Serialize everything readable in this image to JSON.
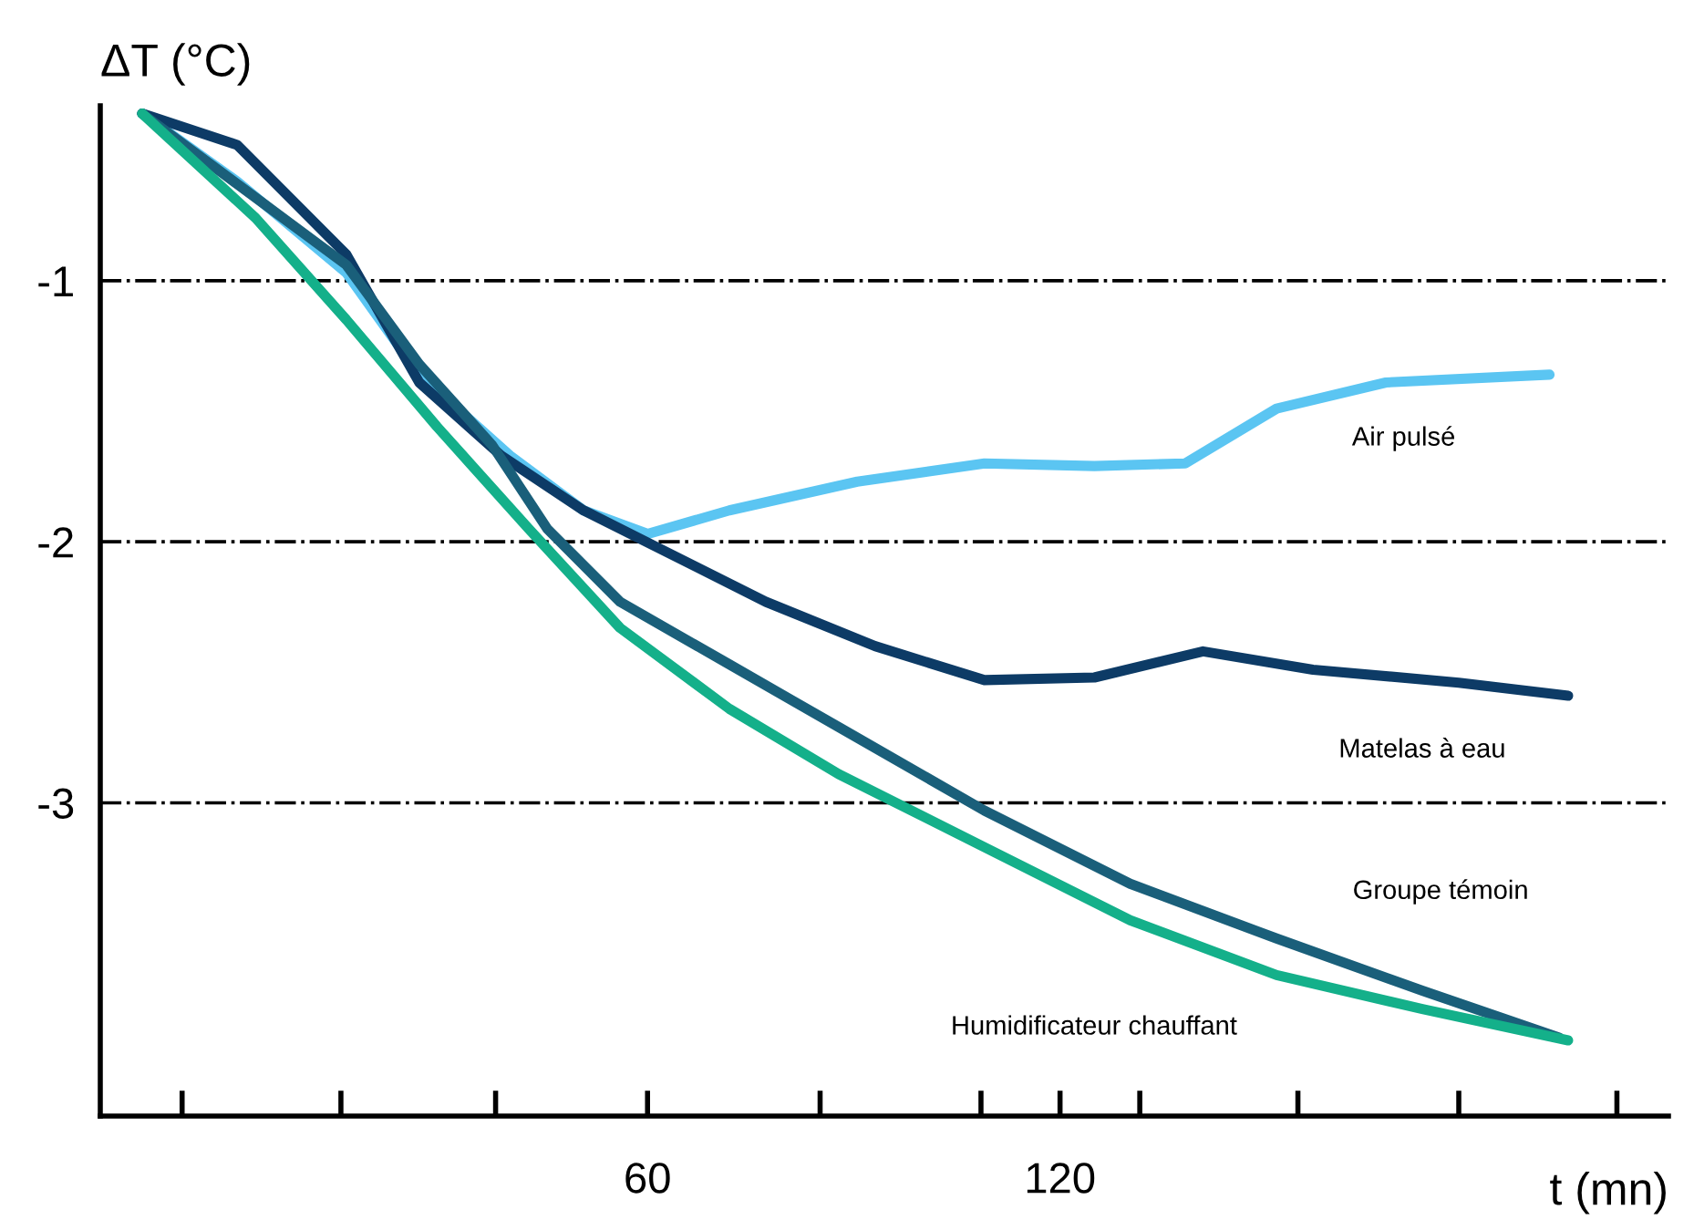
{
  "chart_data": {
    "type": "line",
    "ylabel": "ΔT (°C)",
    "xlabel": "t (mn)",
    "xlim": [
      -19.6,
      208.5
    ],
    "ylim": [
      -4.2,
      -0.33
    ],
    "xticks": [
      {
        "value": -7.7,
        "label": null
      },
      {
        "value": 15.4,
        "label": null
      },
      {
        "value": 37.9,
        "label": null
      },
      60,
      {
        "value": 85.1,
        "label": null
      },
      {
        "value": 108.5,
        "label": null
      },
      120,
      {
        "value": 131.6,
        "label": null
      },
      {
        "value": 154.6,
        "label": null
      },
      {
        "value": 178,
        "label": null
      },
      {
        "value": 201,
        "label": null
      }
    ],
    "yticks": [
      -3,
      -2,
      -1
    ],
    "grid": "y",
    "legend": false,
    "marker": "none",
    "line_style": "solid",
    "series": [
      {
        "name": "Air pulsé",
        "color": "#5bc5f2",
        "x": [
          -13.5,
          0.3,
          16.2,
          26.8,
          40,
          50.7,
          60,
          71.9,
          90.5,
          109,
          125,
          138.2,
          151.5,
          167.4,
          191.2
        ],
        "values": [
          -0.36,
          -0.62,
          -0.97,
          -1.36,
          -1.67,
          -1.88,
          -1.97,
          -1.88,
          -1.77,
          -1.7,
          -1.71,
          -1.7,
          -1.49,
          -1.39,
          -1.36
        ]
      },
      {
        "name": "Matelas à eau",
        "color": "#0d3b66",
        "x": [
          -13.5,
          0.3,
          16.2,
          26.8,
          38.7,
          50.7,
          61.3,
          77.2,
          93.1,
          109,
          125,
          140.8,
          156.8,
          178,
          193.9
        ],
        "values": [
          -0.36,
          -0.48,
          -0.9,
          -1.39,
          -1.67,
          -1.88,
          -2.02,
          -2.23,
          -2.4,
          -2.53,
          -2.52,
          -2.42,
          -2.49,
          -2.54,
          -2.59
        ]
      },
      {
        "name": "Groupe témoin",
        "color": "#1a5f7a",
        "x": [
          -13.5,
          16.2,
          26.8,
          37.4,
          45.4,
          56,
          71.9,
          87.8,
          109,
          130.2,
          151.5,
          172.7,
          192.6
        ],
        "values": [
          -0.36,
          -0.94,
          -1.32,
          -1.63,
          -1.95,
          -2.23,
          -2.47,
          -2.71,
          -3.03,
          -3.31,
          -3.52,
          -3.72,
          -3.9
        ]
      },
      {
        "name": "Humidificateur chauffant",
        "color": "#14b08a",
        "x": [
          -13.5,
          3,
          16.2,
          29.4,
          42.7,
          56,
          71.9,
          87.8,
          109,
          130.2,
          151.5,
          172.7,
          193.9
        ],
        "values": [
          -0.36,
          -0.76,
          -1.15,
          -1.56,
          -1.95,
          -2.33,
          -2.64,
          -2.89,
          -3.17,
          -3.45,
          -3.66,
          -3.79,
          -3.91
        ]
      }
    ]
  }
}
